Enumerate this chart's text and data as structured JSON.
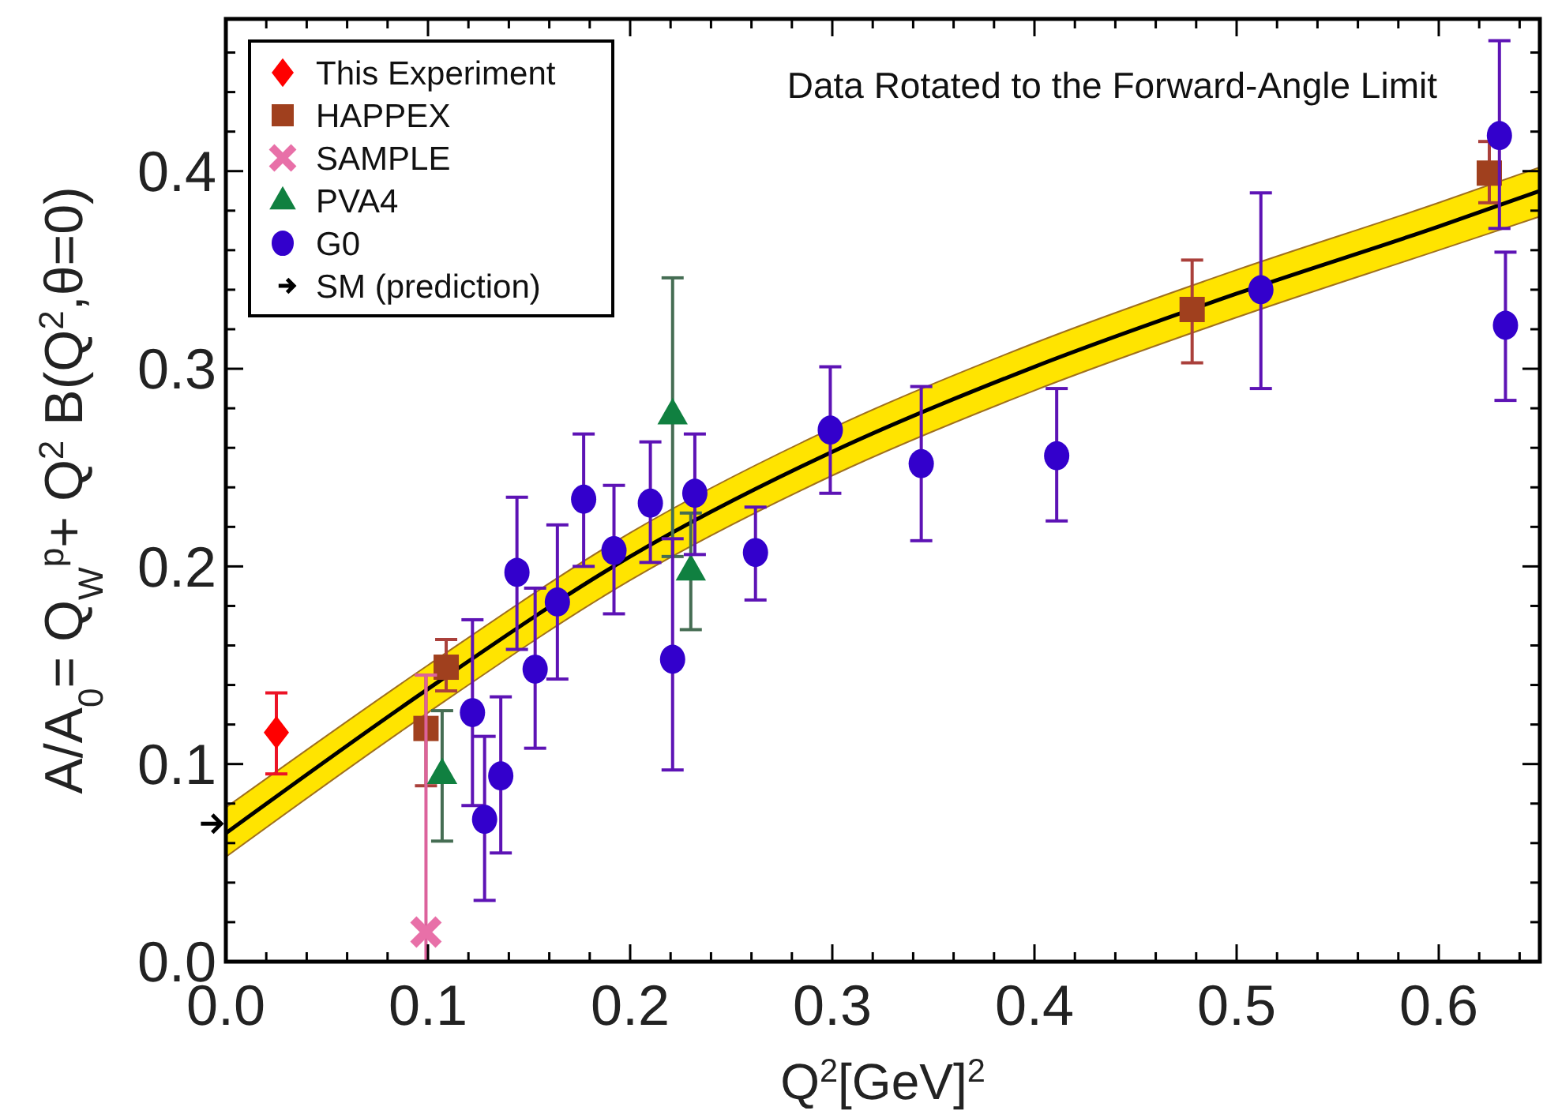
{
  "chart_data": {
    "type": "scatter",
    "xlabel": "Q$^{2}$[GeV]$^{2}$",
    "ylabel": "A/A$_{0}$= Q$_{W}$$^{p}$+ Q$^{2}$ B(Q$^{2}$,θ=0)",
    "annotations": [
      "Data Rotated to the Forward-Angle Limit",
      "SM (prediction)"
    ],
    "xlim": [
      0,
      0.65
    ],
    "ylim": [
      0,
      0.477
    ],
    "xticks": [
      {
        "value": 0,
        "label": "0.0"
      },
      {
        "value": 0.02,
        "label": null
      },
      {
        "value": 0.04,
        "label": null
      },
      {
        "value": 0.06,
        "label": null
      },
      {
        "value": 0.08,
        "label": null
      },
      0.1,
      {
        "value": 0.12,
        "label": null
      },
      {
        "value": 0.14,
        "label": null
      },
      {
        "value": 0.16,
        "label": null
      },
      {
        "value": 0.18,
        "label": null
      },
      0.2,
      {
        "value": 0.22,
        "label": null
      },
      {
        "value": 0.24,
        "label": null
      },
      {
        "value": 0.26,
        "label": null
      },
      {
        "value": 0.28,
        "label": null
      },
      0.3,
      {
        "value": 0.32,
        "label": null
      },
      {
        "value": 0.34,
        "label": null
      },
      {
        "value": 0.36,
        "label": null
      },
      {
        "value": 0.38,
        "label": null
      },
      0.4,
      {
        "value": 0.42,
        "label": null
      },
      {
        "value": 0.44,
        "label": null
      },
      {
        "value": 0.46,
        "label": null
      },
      {
        "value": 0.48,
        "label": null
      },
      0.5,
      {
        "value": 0.52,
        "label": null
      },
      {
        "value": 0.54,
        "label": null
      },
      {
        "value": 0.56,
        "label": null
      },
      {
        "value": 0.58,
        "label": null
      },
      0.6,
      {
        "value": 0.62,
        "label": null
      },
      {
        "value": 0.64,
        "label": null
      }
    ],
    "yticks": [
      {
        "value": 0,
        "label": "0.0"
      },
      {
        "value": 0.02,
        "label": null
      },
      {
        "value": 0.04,
        "label": null
      },
      {
        "value": 0.06,
        "label": null
      },
      {
        "value": 0.08,
        "label": null
      },
      0.1,
      {
        "value": 0.12,
        "label": null
      },
      {
        "value": 0.14,
        "label": null
      },
      {
        "value": 0.16,
        "label": null
      },
      {
        "value": 0.18,
        "label": null
      },
      0.2,
      {
        "value": 0.22,
        "label": null
      },
      {
        "value": 0.24,
        "label": null
      },
      {
        "value": 0.26,
        "label": null
      },
      {
        "value": 0.28,
        "label": null
      },
      0.3,
      {
        "value": 0.32,
        "label": null
      },
      {
        "value": 0.34,
        "label": null
      },
      {
        "value": 0.36,
        "label": null
      },
      {
        "value": 0.38,
        "label": null
      },
      0.4,
      {
        "value": 0.42,
        "label": null
      },
      {
        "value": 0.44,
        "label": null
      },
      {
        "value": 0.46,
        "label": null
      }
    ],
    "grid": false,
    "legend": "top left",
    "series": [
      {
        "type": "line",
        "color": "#000000",
        "line_style": "solid",
        "marker": "none",
        "x": [
          0,
          0.1,
          0.2,
          0.3,
          0.4,
          0.5,
          0.6,
          0.65
        ],
        "values": [
          0.065,
          0.138,
          0.205,
          0.258,
          0.301,
          0.338,
          0.372,
          0.39
        ],
        "lower": [
          0.053,
          0.126,
          0.193,
          0.246,
          0.289,
          0.326,
          0.36,
          0.377
        ],
        "upper": [
          0.078,
          0.15,
          0.217,
          0.27,
          0.313,
          0.35,
          0.384,
          0.402
        ]
      },
      {
        "name": "This Experiment",
        "marker": "diamond",
        "color": "#ff0000",
        "x": [
          0.025
        ],
        "values": [
          0.116
        ],
        "errors": [
          [
            0.095,
            0.136
          ]
        ]
      },
      {
        "name": "HAPPEX",
        "marker": "square",
        "color": "#a0401e",
        "x": [
          0.099,
          0.109,
          0.478,
          0.625
        ],
        "values": [
          0.118,
          0.149,
          0.33,
          0.399
        ],
        "errors": [
          [
            0.089,
            0.145
          ],
          [
            0.137,
            0.163
          ],
          [
            0.303,
            0.355
          ],
          [
            0.384,
            0.415
          ]
        ]
      },
      {
        "name": "SAMPLE",
        "marker": "cross",
        "color": "#e870a8",
        "x": [
          0.099
        ],
        "values": [
          0.015
        ],
        "errors": [
          [
            0,
            0.145
          ]
        ]
      },
      {
        "name": "PVA4",
        "marker": "triangle",
        "color": "#108040",
        "x": [
          0.107,
          0.221,
          0.23
        ],
        "values": [
          0.095,
          0.277,
          0.198
        ],
        "errors": [
          [
            0.061,
            0.127
          ],
          [
            0.205,
            0.346
          ],
          [
            0.168,
            0.227
          ]
        ]
      },
      {
        "name": "G0",
        "marker": "circle",
        "color": "#3300cc",
        "x": [
          0.122,
          0.128,
          0.136,
          0.144,
          0.153,
          0.164,
          0.177,
          0.192,
          0.21,
          0.221,
          0.232,
          0.262,
          0.299,
          0.344,
          0.411,
          0.512,
          0.63,
          0.633
        ],
        "values": [
          0.126,
          0.072,
          0.094,
          0.197,
          0.148,
          0.182,
          0.234,
          0.208,
          0.232,
          0.153,
          0.237,
          0.207,
          0.269,
          0.252,
          0.256,
          0.34,
          0.418,
          0.322
        ],
        "errors": [
          [
            0.079,
            0.173
          ],
          [
            0.031,
            0.114
          ],
          [
            0.055,
            0.134
          ],
          [
            0.158,
            0.235
          ],
          [
            0.108,
            0.189
          ],
          [
            0.143,
            0.221
          ],
          [
            0.2,
            0.267
          ],
          [
            0.176,
            0.241
          ],
          [
            0.202,
            0.263
          ],
          [
            0.097,
            0.214
          ],
          [
            0.206,
            0.267
          ],
          [
            0.183,
            0.23
          ],
          [
            0.237,
            0.301
          ],
          [
            0.213,
            0.291
          ],
          [
            0.223,
            0.29
          ],
          [
            0.29,
            0.389
          ],
          [
            0.371,
            0.466
          ],
          [
            0.284,
            0.359
          ]
        ]
      }
    ]
  }
}
